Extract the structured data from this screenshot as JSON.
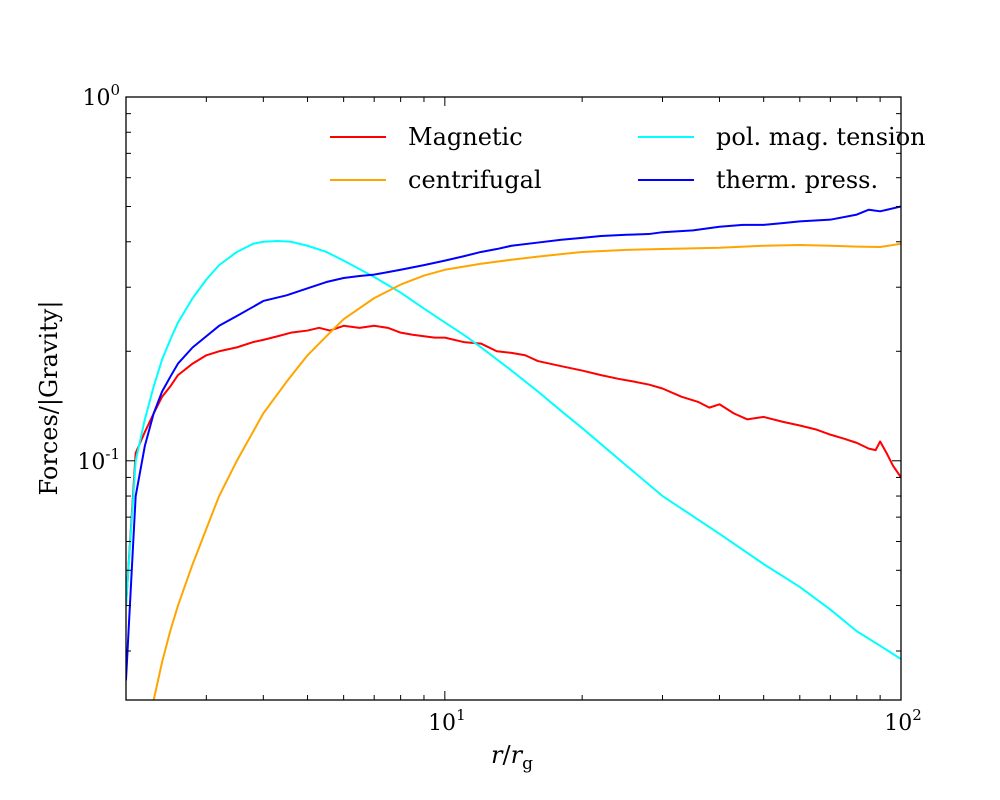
{
  "chart_data": {
    "type": "line",
    "xscale": "log",
    "yscale": "log",
    "xlim": [
      2,
      100
    ],
    "ylim": [
      0.022,
      1.0
    ],
    "xlabel_math": {
      "base": "r",
      "slash": "/",
      "sub_base": "r",
      "sub": "g"
    },
    "ylabel": "Forces/|Gravity|",
    "x_ticks": [
      {
        "value": 10,
        "base": "10",
        "exp": "1"
      },
      {
        "value": 100,
        "base": "10",
        "exp": "2"
      }
    ],
    "y_ticks": [
      {
        "value": 1.0,
        "base": "10",
        "exp": "0"
      },
      {
        "value": 0.1,
        "base": "10",
        "exp": "-1"
      }
    ],
    "legend": {
      "placement": "top-right",
      "columns": 2
    },
    "series": [
      {
        "name": "Magnetic",
        "color": "#ff0000",
        "x": [
          2.0,
          2.1,
          2.2,
          2.3,
          2.4,
          2.5,
          2.6,
          2.8,
          3.0,
          3.2,
          3.5,
          3.8,
          4.0,
          4.3,
          4.6,
          5.0,
          5.3,
          5.6,
          6.0,
          6.5,
          7.0,
          7.5,
          8.0,
          8.5,
          9.0,
          9.5,
          10,
          11,
          12,
          13,
          14,
          15,
          16,
          18,
          20,
          22,
          24,
          26,
          28,
          30,
          33,
          36,
          38,
          40,
          43,
          46,
          50,
          55,
          60,
          65,
          70,
          75,
          80,
          85,
          88,
          90,
          93,
          96,
          100
        ],
        "y": [
          0.04,
          0.105,
          0.12,
          0.135,
          0.15,
          0.16,
          0.172,
          0.185,
          0.195,
          0.2,
          0.205,
          0.212,
          0.215,
          0.22,
          0.225,
          0.228,
          0.232,
          0.228,
          0.235,
          0.232,
          0.235,
          0.232,
          0.225,
          0.222,
          0.22,
          0.218,
          0.218,
          0.212,
          0.21,
          0.2,
          0.198,
          0.195,
          0.188,
          0.182,
          0.177,
          0.172,
          0.168,
          0.165,
          0.162,
          0.158,
          0.15,
          0.145,
          0.14,
          0.143,
          0.135,
          0.13,
          0.132,
          0.128,
          0.125,
          0.122,
          0.118,
          0.115,
          0.112,
          0.108,
          0.107,
          0.113,
          0.105,
          0.097,
          0.09
        ]
      },
      {
        "name": "pol. mag. tension",
        "color": "#00ffff",
        "x": [
          2.0,
          2.1,
          2.2,
          2.3,
          2.4,
          2.5,
          2.6,
          2.8,
          3.0,
          3.2,
          3.5,
          3.8,
          4.0,
          4.3,
          4.6,
          5.0,
          5.5,
          6.0,
          7.0,
          8.0,
          9.0,
          10,
          11,
          12,
          14,
          16,
          18,
          20,
          25,
          30,
          40,
          50,
          60,
          70,
          80,
          90,
          100
        ],
        "y": [
          0.04,
          0.1,
          0.13,
          0.16,
          0.19,
          0.215,
          0.24,
          0.28,
          0.315,
          0.345,
          0.375,
          0.395,
          0.4,
          0.402,
          0.4,
          0.39,
          0.375,
          0.355,
          0.32,
          0.29,
          0.262,
          0.24,
          0.222,
          0.205,
          0.177,
          0.155,
          0.137,
          0.123,
          0.097,
          0.08,
          0.063,
          0.052,
          0.045,
          0.039,
          0.034,
          0.031,
          0.0285
        ]
      },
      {
        "name": "centrifugal",
        "color": "#ffa500",
        "x": [
          2.3,
          2.4,
          2.5,
          2.6,
          2.8,
          3.0,
          3.2,
          3.5,
          4.0,
          4.5,
          5.0,
          5.5,
          6.0,
          7.0,
          8.0,
          9.0,
          10,
          12,
          14,
          16,
          18,
          20,
          25,
          30,
          40,
          50,
          60,
          70,
          80,
          90,
          100
        ],
        "y": [
          0.022,
          0.028,
          0.034,
          0.04,
          0.052,
          0.065,
          0.08,
          0.1,
          0.135,
          0.165,
          0.195,
          0.22,
          0.245,
          0.28,
          0.305,
          0.323,
          0.335,
          0.348,
          0.357,
          0.364,
          0.37,
          0.375,
          0.38,
          0.382,
          0.385,
          0.39,
          0.392,
          0.39,
          0.388,
          0.387,
          0.395
        ]
      },
      {
        "name": "therm. press.",
        "color": "#0000ff",
        "x": [
          2.0,
          2.1,
          2.2,
          2.3,
          2.4,
          2.5,
          2.6,
          2.8,
          3.0,
          3.2,
          3.5,
          3.8,
          4.0,
          4.5,
          5.0,
          5.5,
          6.0,
          6.5,
          7.0,
          7.5,
          8.0,
          9.0,
          10,
          11,
          12,
          13,
          14,
          16,
          18,
          20,
          22,
          25,
          28,
          30,
          35,
          40,
          45,
          50,
          55,
          60,
          70,
          80,
          85,
          90,
          100
        ],
        "y": [
          0.025,
          0.08,
          0.11,
          0.135,
          0.155,
          0.17,
          0.185,
          0.205,
          0.22,
          0.235,
          0.25,
          0.265,
          0.275,
          0.285,
          0.298,
          0.31,
          0.318,
          0.322,
          0.325,
          0.33,
          0.335,
          0.345,
          0.355,
          0.365,
          0.375,
          0.382,
          0.39,
          0.398,
          0.405,
          0.41,
          0.415,
          0.418,
          0.42,
          0.425,
          0.43,
          0.44,
          0.445,
          0.445,
          0.45,
          0.455,
          0.46,
          0.475,
          0.49,
          0.485,
          0.5
        ]
      }
    ]
  }
}
